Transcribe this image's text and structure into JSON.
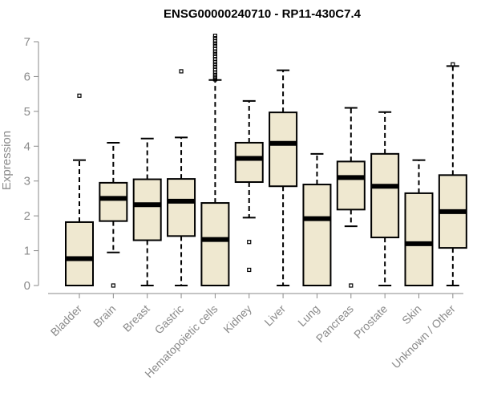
{
  "chart_data": {
    "type": "box",
    "title": "ENSG00000240710 - RP11-430C7.4",
    "xlabel": "",
    "ylabel": "Expression",
    "ylim": [
      0,
      7
    ],
    "yticks": [
      0,
      1,
      2,
      3,
      4,
      5,
      6,
      7
    ],
    "colors": {
      "box_fill": "#efe8d0",
      "stroke": "#000000",
      "axis": "#8a8a8a"
    },
    "categories": [
      "Bladder",
      "Brain",
      "Breast",
      "Gastric",
      "Hematopoietic cells",
      "Kidney",
      "Liver",
      "Lung",
      "Pancreas",
      "Prostate",
      "Skin",
      "Unknown / Other"
    ],
    "boxes": [
      {
        "category": "Bladder",
        "min": 0,
        "q1": 0,
        "median": 0.77,
        "q3": 1.82,
        "max": 3.6,
        "outliers": [
          5.45
        ]
      },
      {
        "category": "Brain",
        "min": 0.95,
        "q1": 1.85,
        "median": 2.5,
        "q3": 2.95,
        "max": 4.1,
        "outliers": [
          0
        ]
      },
      {
        "category": "Breast",
        "min": 0,
        "q1": 1.3,
        "median": 2.32,
        "q3": 3.05,
        "max": 4.22,
        "outliers": []
      },
      {
        "category": "Gastric",
        "min": 0,
        "q1": 1.42,
        "median": 2.42,
        "q3": 3.06,
        "max": 4.25,
        "outliers": [
          6.15
        ]
      },
      {
        "category": "Hematopoietic cells",
        "min": 0,
        "q1": 0,
        "median": 1.32,
        "q3": 2.37,
        "max": 5.9,
        "outliers": [
          5.92,
          5.98,
          6.05,
          6.12,
          6.2,
          6.28,
          6.35,
          6.42,
          6.5,
          6.58,
          6.65,
          6.72,
          6.8,
          6.88,
          6.95,
          7.02,
          7.1,
          7.17
        ]
      },
      {
        "category": "Kidney",
        "min": 1.95,
        "q1": 2.97,
        "median": 3.65,
        "q3": 4.1,
        "max": 5.3,
        "outliers": [
          1.25,
          0.45
        ]
      },
      {
        "category": "Liver",
        "min": 0,
        "q1": 2.85,
        "median": 4.08,
        "q3": 4.97,
        "max": 6.18,
        "outliers": []
      },
      {
        "category": "Lung",
        "min": 0,
        "q1": 0,
        "median": 1.92,
        "q3": 2.9,
        "max": 3.78,
        "outliers": []
      },
      {
        "category": "Pancreas",
        "min": 1.7,
        "q1": 2.18,
        "median": 3.1,
        "q3": 3.56,
        "max": 5.1,
        "outliers": [
          0
        ]
      },
      {
        "category": "Prostate",
        "min": 0,
        "q1": 1.38,
        "median": 2.85,
        "q3": 3.78,
        "max": 4.98,
        "outliers": []
      },
      {
        "category": "Skin",
        "min": 0,
        "q1": 0,
        "median": 1.2,
        "q3": 2.65,
        "max": 3.6,
        "outliers": []
      },
      {
        "category": "Unknown / Other",
        "min": 0,
        "q1": 1.08,
        "median": 2.12,
        "q3": 3.17,
        "max": 6.3,
        "outliers": [
          6.35
        ]
      }
    ]
  }
}
